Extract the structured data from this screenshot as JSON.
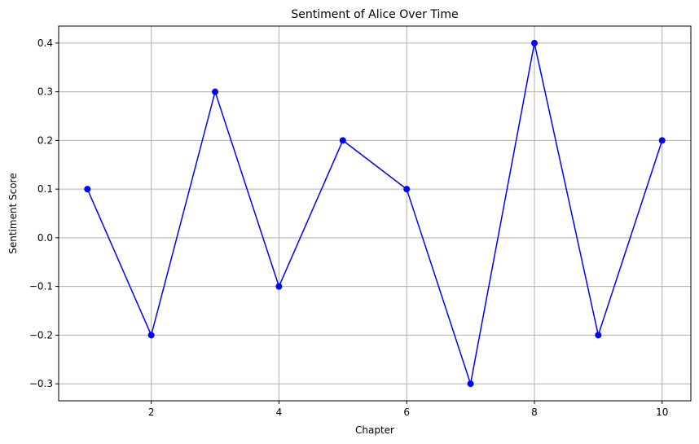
{
  "chart_data": {
    "type": "line",
    "title": "Sentiment of Alice Over Time",
    "xlabel": "Chapter",
    "ylabel": "Sentiment Score",
    "x": [
      1,
      2,
      3,
      4,
      5,
      6,
      7,
      8,
      9,
      10
    ],
    "series": [
      {
        "values": [
          0.1,
          -0.2,
          0.3,
          -0.1,
          0.2,
          0.1,
          -0.3,
          0.4,
          -0.2,
          0.2
        ],
        "color": "#0000ff",
        "marker": "circle"
      }
    ],
    "xlim": [
      0.55,
      10.45
    ],
    "ylim": [
      -0.335,
      0.435
    ],
    "xticks": [
      2,
      4,
      6,
      8,
      10
    ],
    "xtick_labels": [
      "2",
      "4",
      "6",
      "8",
      "10"
    ],
    "yticks": [
      -0.3,
      -0.2,
      -0.1,
      0.0,
      0.1,
      0.2,
      0.3,
      0.4
    ],
    "ytick_labels": [
      "−0.3",
      "−0.2",
      "−0.1",
      "0.0",
      "0.1",
      "0.2",
      "0.3",
      "0.4"
    ],
    "grid": true,
    "grid_color": "#b0b0b0",
    "legend": "none"
  }
}
